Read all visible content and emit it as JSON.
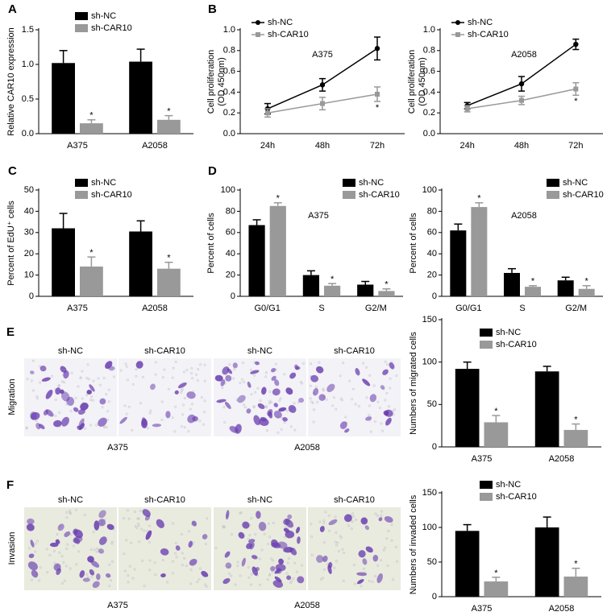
{
  "panel_labels": [
    "A",
    "B",
    "C",
    "D",
    "E",
    "F"
  ],
  "chart_data": [
    {
      "type": "bar",
      "ylabel": "Relative CAR10 expression",
      "categories": [
        "A375",
        "A2058"
      ],
      "series": [
        {
          "name": "sh-NC",
          "color": "#000000",
          "values": [
            1.02,
            1.04
          ],
          "errors": [
            0.18,
            0.18
          ],
          "significance": [
            null,
            null
          ]
        },
        {
          "name": "sh-CAR10",
          "color": "#999999",
          "values": [
            0.15,
            0.2
          ],
          "errors": [
            0.05,
            0.06
          ],
          "significance": [
            "*",
            "*"
          ]
        }
      ],
      "ylim": [
        0,
        1.5
      ],
      "yticks": [
        {
          "value": 0,
          "label": "0.0"
        },
        0.5,
        {
          "value": 1,
          "label": "1.0"
        },
        1.5
      ]
    },
    {
      "type": "line",
      "ylabel": [
        "Cell proliferation",
        "(OD 450nm)"
      ],
      "annotation": "A375",
      "categories": [
        "24h",
        "48h",
        "72h"
      ],
      "series": [
        {
          "name": "sh-NC",
          "color": "#000000",
          "values": [
            0.24,
            0.47,
            0.82
          ],
          "errors": [
            0.05,
            0.06,
            0.11
          ],
          "significance": [
            null,
            null,
            null
          ]
        },
        {
          "name": "sh-CAR10",
          "color": "#999999",
          "values": [
            0.2,
            0.29,
            0.38
          ],
          "errors": [
            0.04,
            0.06,
            0.07
          ],
          "significance": [
            null,
            null,
            "*"
          ]
        }
      ],
      "ylim": [
        0,
        1
      ],
      "yticks": [
        {
          "value": 0,
          "label": "0.0"
        },
        0.2,
        0.4,
        0.6,
        0.8,
        {
          "value": 1,
          "label": "1.0"
        }
      ]
    },
    {
      "type": "line",
      "ylabel": [
        "Cell proliferation",
        "(OD 450nm)"
      ],
      "annotation": "A2058",
      "categories": [
        "24h",
        "48h",
        "72h"
      ],
      "series": [
        {
          "name": "sh-NC",
          "color": "#000000",
          "values": [
            0.27,
            0.48,
            0.86
          ],
          "errors": [
            0.03,
            0.07,
            0.05
          ],
          "significance": [
            null,
            null,
            null
          ]
        },
        {
          "name": "sh-CAR10",
          "color": "#999999",
          "values": [
            0.24,
            0.32,
            0.43
          ],
          "errors": [
            0.03,
            0.04,
            0.06
          ],
          "significance": [
            null,
            null,
            "*"
          ]
        }
      ],
      "ylim": [
        0,
        1
      ],
      "yticks": [
        {
          "value": 0,
          "label": "0.0"
        },
        0.2,
        0.4,
        0.6,
        0.8,
        {
          "value": 1,
          "label": "1.0"
        }
      ]
    },
    {
      "type": "bar",
      "ylabel": "Percent of EdU⁺ cells",
      "categories": [
        "A375",
        "A2058"
      ],
      "series": [
        {
          "name": "sh-NC",
          "color": "#000000",
          "values": [
            32,
            30.5
          ],
          "errors": [
            7,
            5
          ],
          "significance": [
            null,
            null
          ]
        },
        {
          "name": "sh-CAR10",
          "color": "#999999",
          "values": [
            14,
            13
          ],
          "errors": [
            4.5,
            3
          ],
          "significance": [
            "*",
            "*"
          ]
        }
      ],
      "ylim": [
        0,
        50
      ],
      "yticks": [
        0,
        10,
        20,
        30,
        40,
        50
      ]
    },
    {
      "type": "bar",
      "ylabel": "Percent of cells",
      "annotation": "A375",
      "categories": [
        "G0/G1",
        "S",
        "G2/M"
      ],
      "series": [
        {
          "name": "sh-NC",
          "color": "#000000",
          "values": [
            67,
            20,
            11
          ],
          "errors": [
            5,
            4,
            3
          ],
          "significance": [
            null,
            null,
            null
          ]
        },
        {
          "name": "sh-CAR10",
          "color": "#999999",
          "values": [
            85,
            10,
            5
          ],
          "errors": [
            3,
            2,
            2
          ],
          "significance": [
            "*",
            "*",
            "*"
          ]
        }
      ],
      "ylim": [
        0,
        100
      ],
      "yticks": [
        0,
        20,
        40,
        60,
        80,
        100
      ]
    },
    {
      "type": "bar",
      "ylabel": "Percent of cells",
      "annotation": "A2058",
      "categories": [
        "G0/G1",
        "S",
        "G2/M"
      ],
      "series": [
        {
          "name": "sh-NC",
          "color": "#000000",
          "values": [
            62,
            22,
            15
          ],
          "errors": [
            6,
            4,
            3
          ],
          "significance": [
            null,
            null,
            null
          ]
        },
        {
          "name": "sh-CAR10",
          "color": "#999999",
          "values": [
            84,
            9,
            7
          ],
          "errors": [
            4,
            1,
            3
          ],
          "significance": [
            "*",
            "*",
            "*"
          ]
        }
      ],
      "ylim": [
        0,
        100
      ],
      "yticks": [
        0,
        20,
        40,
        60,
        80,
        100
      ]
    },
    {
      "type": "bar",
      "ylabel": "Numbers of migrated cells",
      "categories": [
        "A375",
        "A2058"
      ],
      "series": [
        {
          "name": "sh-NC",
          "color": "#000000",
          "values": [
            92,
            89
          ],
          "errors": [
            8,
            6
          ],
          "significance": [
            null,
            null
          ]
        },
        {
          "name": "sh-CAR10",
          "color": "#999999",
          "values": [
            29,
            20
          ],
          "errors": [
            8,
            7
          ],
          "significance": [
            "*",
            "*"
          ]
        }
      ],
      "ylim": [
        0,
        150
      ],
      "yticks": [
        0,
        50,
        100,
        150
      ]
    },
    {
      "type": "bar",
      "ylabel": "Numbers of invaded cells",
      "categories": [
        "A375",
        "A2058"
      ],
      "series": [
        {
          "name": "sh-NC",
          "color": "#000000",
          "values": [
            95,
            100
          ],
          "errors": [
            9,
            15
          ],
          "significance": [
            null,
            null
          ]
        },
        {
          "name": "sh-CAR10",
          "color": "#999999",
          "values": [
            22,
            29
          ],
          "errors": [
            6,
            12
          ],
          "significance": [
            "*",
            "*"
          ]
        }
      ],
      "ylim": [
        0,
        150
      ],
      "yticks": [
        0,
        50,
        100,
        150
      ]
    }
  ],
  "micrographs": [
    {
      "row_label": "Migration",
      "groups": [
        {
          "cell_line": "A375",
          "conditions": [
            "sh-NC",
            "sh-CAR10"
          ]
        },
        {
          "cell_line": "A2058",
          "conditions": [
            "sh-NC",
            "sh-CAR10"
          ]
        }
      ]
    },
    {
      "row_label": "Invasion",
      "groups": [
        {
          "cell_line": "A375",
          "conditions": [
            "sh-NC",
            "sh-CAR10"
          ]
        },
        {
          "cell_line": "A2058",
          "conditions": [
            "sh-NC",
            "sh-CAR10"
          ]
        }
      ]
    }
  ]
}
